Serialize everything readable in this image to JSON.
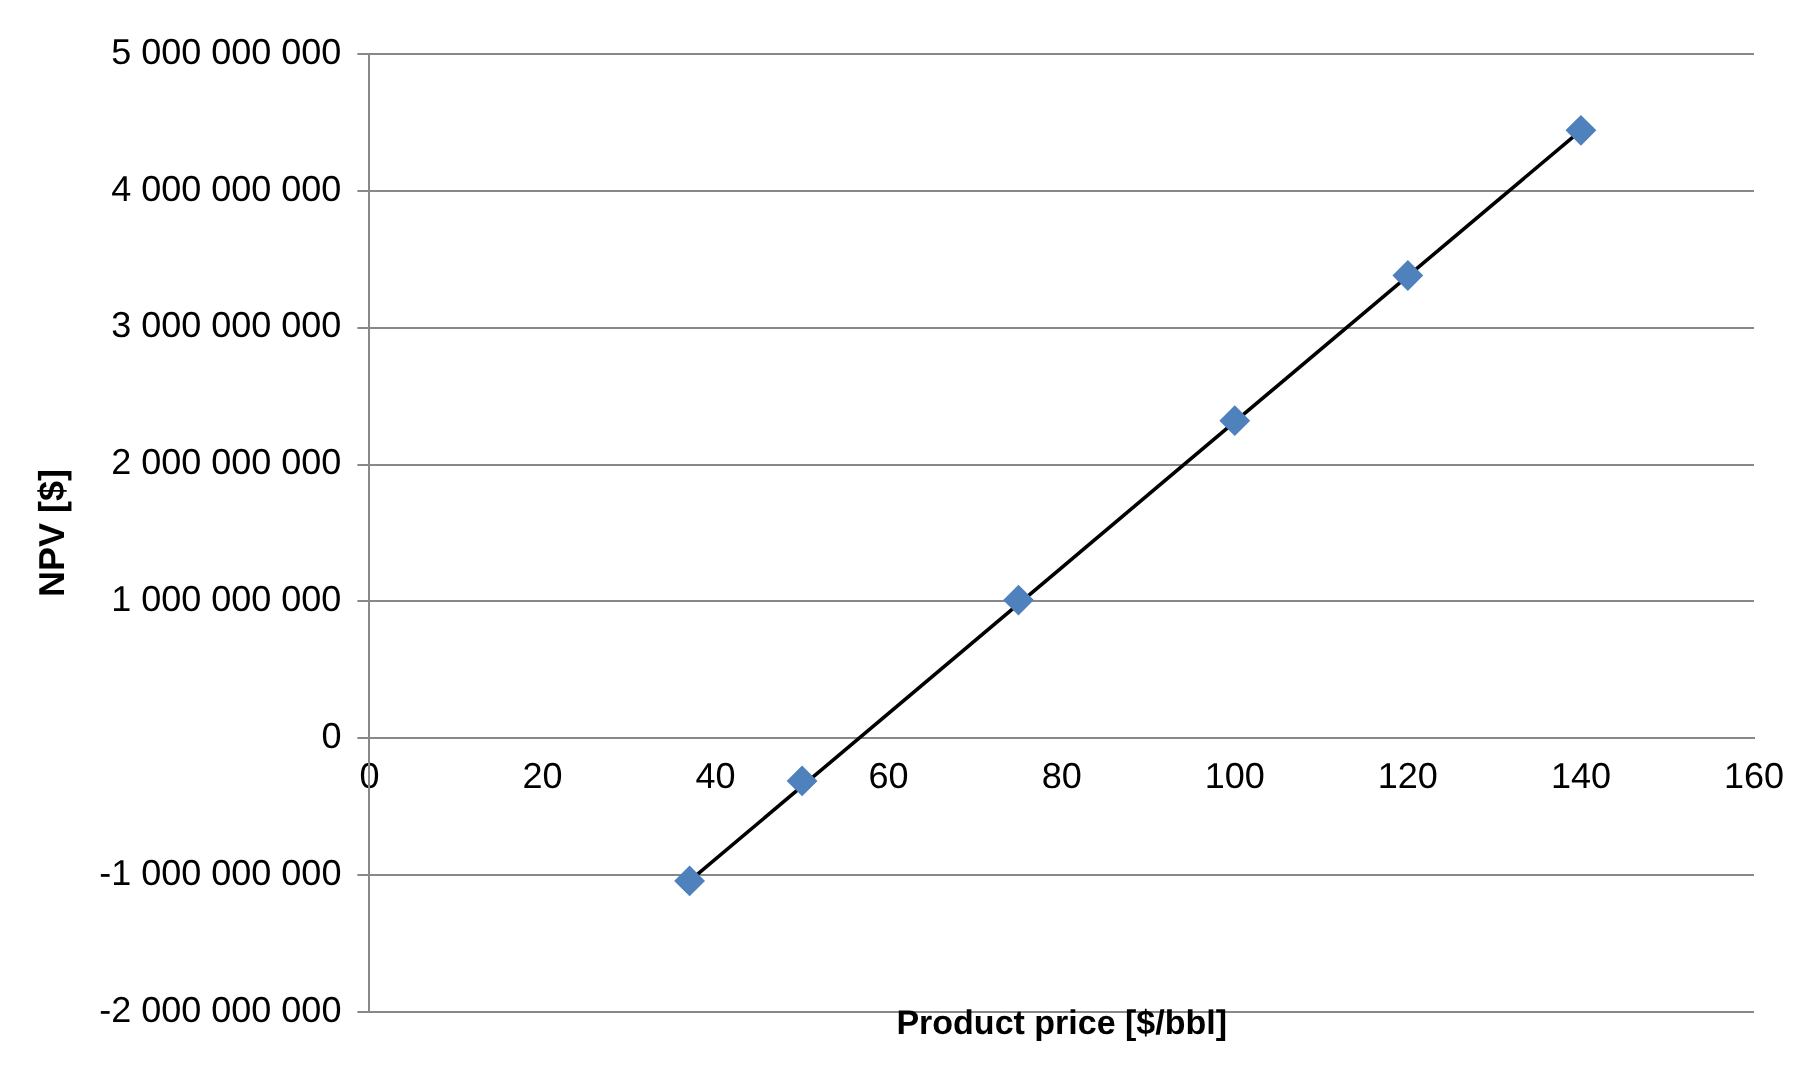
{
  "chart_data": {
    "type": "scatter",
    "xlabel": "Product price [$/bbl]",
    "ylabel": "NPV [$]",
    "xlim": [
      0,
      160
    ],
    "xticks": [
      0,
      20,
      40,
      60,
      80,
      100,
      120,
      140,
      160
    ],
    "ylim": [
      -2000000000,
      5000000000
    ],
    "yticks": [
      {
        "value": -2000000000,
        "label": "-2 000 000 000"
      },
      {
        "value": -1000000000,
        "label": "-1 000 000 000"
      },
      {
        "value": 0,
        "label": "0"
      },
      {
        "value": 1000000000,
        "label": "1 000 000 000"
      },
      {
        "value": 2000000000,
        "label": "2 000 000 000"
      },
      {
        "value": 3000000000,
        "label": "3 000 000 000"
      },
      {
        "value": 4000000000,
        "label": "4 000 000 000"
      },
      {
        "value": 5000000000,
        "label": "5 000 000 000"
      }
    ],
    "grid": "y",
    "legend": false,
    "series": [
      {
        "type": "scatter",
        "color": "#4f81bd",
        "marker": "diamond",
        "x": [
          37,
          50,
          75,
          100,
          120,
          140
        ],
        "values": [
          -1040000000,
          -310000000,
          1010000000,
          2320000000,
          3380000000,
          4440000000
        ]
      },
      {
        "type": "line",
        "color": "#000000",
        "marker": "none",
        "line_style": "solid",
        "x": [
          37,
          140
        ],
        "values": [
          -1040000000,
          4440000000
        ]
      }
    ]
  }
}
